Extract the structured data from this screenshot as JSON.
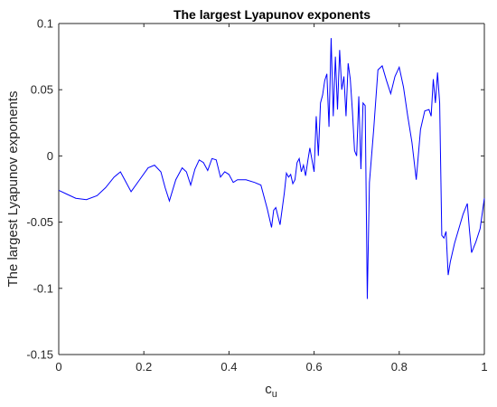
{
  "chart_data": {
    "type": "line",
    "title": "The largest Lyapunov exponents",
    "xlabel_base": "c",
    "xlabel_sub": "u",
    "ylabel": "The largest Lyapunov exponents",
    "xlim": [
      0,
      1
    ],
    "ylim": [
      -0.15,
      0.1
    ],
    "grid": false,
    "legend": "none",
    "x_ticks": [
      0,
      0.2,
      0.4,
      0.6,
      0.8,
      1
    ],
    "x_tick_labels": [
      "0",
      "0.2",
      "0.4",
      "0.6",
      "0.8",
      "1"
    ],
    "y_ticks": [
      -0.15,
      -0.1,
      -0.05,
      0,
      0.05,
      0.1
    ],
    "y_tick_labels": [
      "-0.15",
      "-0.1",
      "-0.05",
      "0",
      "0.05",
      "0.1"
    ],
    "line_color": "#0000ff",
    "series": [
      {
        "x": [
          0,
          0.02,
          0.04,
          0.065,
          0.09,
          0.11,
          0.13,
          0.145,
          0.155,
          0.17,
          0.19,
          0.21,
          0.225,
          0.24,
          0.25,
          0.26,
          0.275,
          0.29,
          0.3,
          0.31,
          0.32,
          0.33,
          0.34,
          0.35,
          0.36,
          0.37,
          0.38,
          0.39,
          0.4,
          0.41,
          0.42,
          0.44,
          0.46,
          0.475,
          0.49,
          0.5,
          0.505,
          0.51,
          0.52,
          0.53,
          0.535,
          0.54,
          0.545,
          0.55,
          0.555,
          0.56,
          0.565,
          0.57,
          0.575,
          0.58,
          0.585,
          0.59,
          0.595,
          0.6,
          0.605,
          0.61,
          0.615,
          0.62,
          0.625,
          0.63,
          0.635,
          0.64,
          0.645,
          0.65,
          0.655,
          0.66,
          0.665,
          0.67,
          0.675,
          0.68,
          0.685,
          0.69,
          0.695,
          0.7,
          0.705,
          0.71,
          0.715,
          0.72,
          0.725,
          0.73,
          0.74,
          0.75,
          0.76,
          0.77,
          0.78,
          0.79,
          0.8,
          0.81,
          0.82,
          0.83,
          0.84,
          0.85,
          0.86,
          0.87,
          0.875,
          0.88,
          0.885,
          0.89,
          0.895,
          0.9,
          0.905,
          0.91,
          0.915,
          0.92,
          0.93,
          0.94,
          0.95,
          0.96,
          0.965,
          0.97,
          0.98,
          0.99,
          1.0
        ],
        "y": [
          -0.026,
          -0.029,
          -0.032,
          -0.033,
          -0.03,
          -0.024,
          -0.016,
          -0.012,
          -0.018,
          -0.027,
          -0.018,
          -0.009,
          -0.007,
          -0.012,
          -0.024,
          -0.034,
          -0.018,
          -0.009,
          -0.012,
          -0.022,
          -0.01,
          -0.003,
          -0.005,
          -0.011,
          -0.002,
          -0.003,
          -0.016,
          -0.012,
          -0.014,
          -0.02,
          -0.018,
          -0.018,
          -0.02,
          -0.022,
          -0.04,
          -0.054,
          -0.041,
          -0.039,
          -0.052,
          -0.028,
          -0.013,
          -0.016,
          -0.014,
          -0.021,
          -0.018,
          -0.005,
          -0.002,
          -0.012,
          -0.007,
          -0.015,
          -0.004,
          0.006,
          -0.003,
          -0.012,
          0.03,
          0.0,
          0.04,
          0.046,
          0.057,
          0.062,
          0.022,
          0.089,
          0.03,
          0.075,
          0.035,
          0.08,
          0.05,
          0.06,
          0.03,
          0.07,
          0.058,
          0.034,
          0.004,
          0.0,
          0.045,
          -0.01,
          0.04,
          0.038,
          -0.108,
          -0.02,
          0.02,
          0.065,
          0.068,
          0.057,
          0.047,
          0.06,
          0.067,
          0.052,
          0.03,
          0.01,
          -0.018,
          0.02,
          0.034,
          0.035,
          0.03,
          0.058,
          0.04,
          0.063,
          0.04,
          -0.06,
          -0.062,
          -0.057,
          -0.09,
          -0.08,
          -0.066,
          -0.055,
          -0.044,
          -0.036,
          -0.056,
          -0.073,
          -0.065,
          -0.055,
          -0.032
        ]
      }
    ]
  }
}
